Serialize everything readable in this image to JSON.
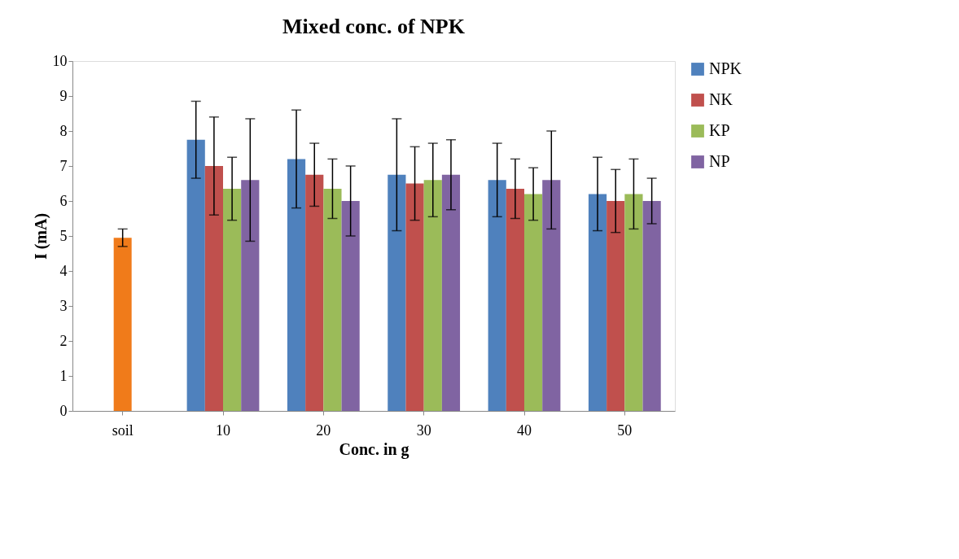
{
  "chart_data": {
    "type": "bar",
    "title": "Mixed conc. of NPK",
    "xlabel": "Conc. in g",
    "ylabel": "I (mA)",
    "categories": [
      "soil",
      "10",
      "20",
      "30",
      "40",
      "50"
    ],
    "series": [
      {
        "name": "NPK",
        "color": "#4f81bd",
        "values": [
          null,
          7.75,
          7.2,
          6.75,
          6.6,
          6.2
        ],
        "errors": [
          null,
          1.1,
          1.4,
          1.6,
          1.05,
          1.05
        ]
      },
      {
        "name": "NK",
        "color": "#c0504d",
        "values": [
          null,
          7.0,
          6.75,
          6.5,
          6.35,
          6.0
        ],
        "errors": [
          null,
          1.4,
          0.9,
          1.05,
          0.85,
          0.9
        ]
      },
      {
        "name": "KP",
        "color": "#9bbb59",
        "values": [
          null,
          6.35,
          6.35,
          6.6,
          6.2,
          6.2
        ],
        "errors": [
          null,
          0.9,
          0.85,
          1.05,
          0.75,
          1.0
        ]
      },
      {
        "name": "NP",
        "color": "#8064a2",
        "values": [
          null,
          6.6,
          6.0,
          6.75,
          6.6,
          6.0
        ],
        "errors": [
          null,
          1.75,
          1.0,
          1.0,
          1.4,
          0.65
        ]
      },
      {
        "color": "#f07b1a",
        "values": [
          4.95,
          null,
          null,
          null,
          null,
          null
        ],
        "errors": [
          0.25,
          null,
          null,
          null,
          null,
          null
        ]
      }
    ],
    "ylim": [
      0,
      10
    ],
    "yticks": [
      0,
      1,
      2,
      3,
      4,
      5,
      6,
      7,
      8,
      9,
      10
    ],
    "grid": false,
    "legend": "right"
  }
}
